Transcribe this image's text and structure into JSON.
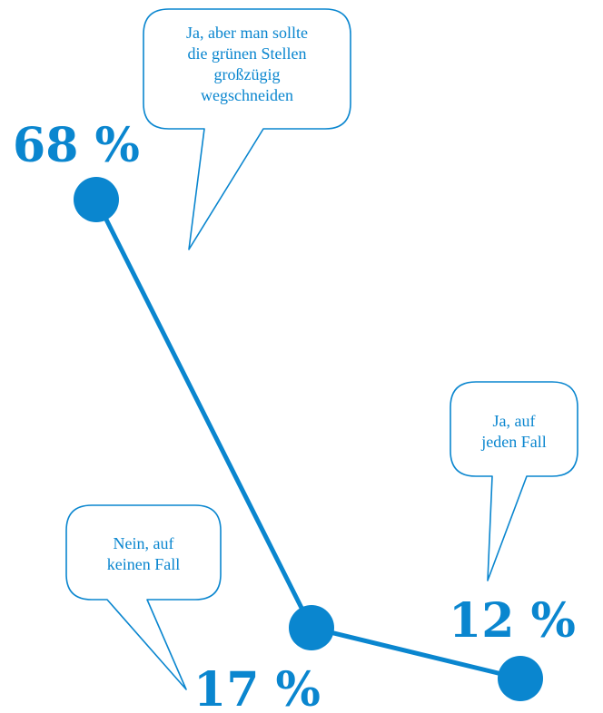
{
  "colors": {
    "accent": "#0a86cf",
    "background": "#ffffff"
  },
  "chart_data": {
    "type": "line",
    "categories": [
      "Ja, aber man sollte die grünen Stellen großzügig wegschneiden",
      "Nein, auf keinen Fall",
      "Ja, auf jeden Fall"
    ],
    "series": [
      {
        "values": [
          68,
          17,
          12
        ]
      }
    ],
    "data_labels": [
      "68 %",
      "17 %",
      "12 %"
    ],
    "annotations": [
      {
        "lines": [
          "Ja, aber man sollte",
          "die grünen Stellen",
          "großzügig",
          "wegschneiden"
        ]
      },
      {
        "lines": [
          "Nein, auf",
          "keinen Fall"
        ]
      },
      {
        "lines": [
          "Ja, auf",
          "jeden Fall"
        ]
      }
    ],
    "ylim": [
      0,
      75
    ],
    "grid": false,
    "legend": "none"
  }
}
